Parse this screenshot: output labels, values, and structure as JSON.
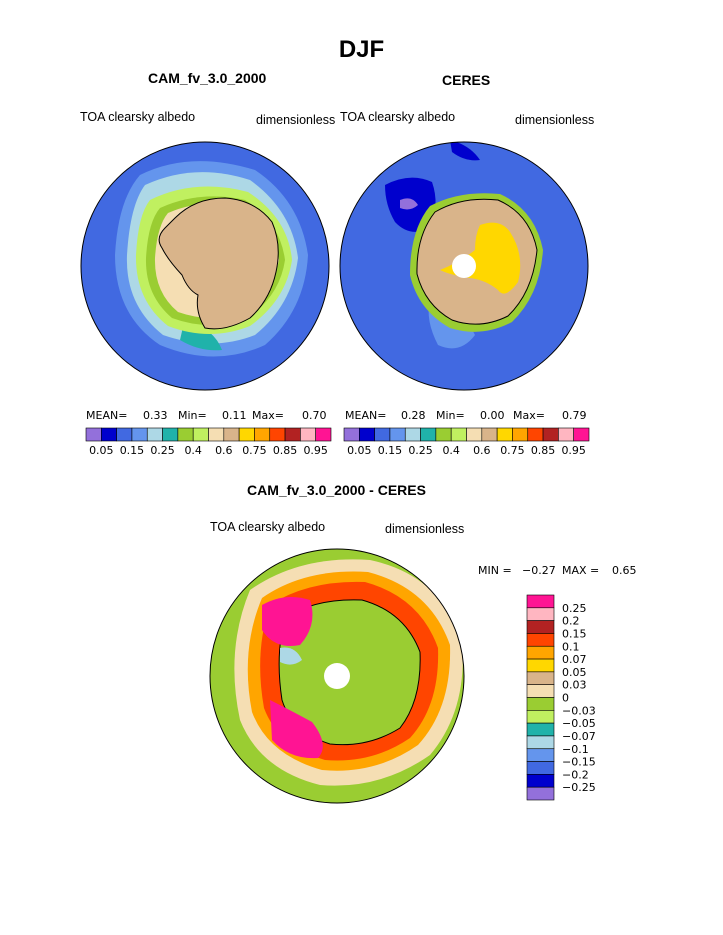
{
  "page": {
    "title": "DJF"
  },
  "colors": {
    "continent": "#d9b48a",
    "ocean_model": "#4169e1",
    "coast": "#000000",
    "palette_abs": [
      "#9370db",
      "#0000cd",
      "#4169e1",
      "#6495ed",
      "#add8e6",
      "#20b2aa",
      "#9acd32",
      "#c0f060",
      "#f5deb3",
      "#d9b48a",
      "#ffd700",
      "#ffa500",
      "#ff4500",
      "#b22222",
      "#ffb6c1",
      "#ff1493"
    ],
    "palette_diff": [
      "#ff1493",
      "#ffb6c1",
      "#b22222",
      "#ff4500",
      "#ffa500",
      "#ffd700",
      "#d9b48a",
      "#f5deb3",
      "#9acd32",
      "#c0f060",
      "#20b2aa",
      "#add8e6",
      "#6495ed",
      "#4169e1",
      "#0000cd",
      "#9370db"
    ]
  },
  "panels": [
    {
      "title": "CAM_fv_3.0_2000",
      "left_label": "TOA clearsky albedo",
      "right_label": "dimensionless",
      "mean_label": "MEAN=",
      "mean": "0.33",
      "min_label": "Min=",
      "min": "0.11",
      "max_label": "Max=",
      "max": "0.70"
    },
    {
      "title": "CERES",
      "left_label": "TOA clearsky albedo",
      "right_label": "dimensionless",
      "mean_label": "MEAN=",
      "mean": "0.28",
      "min_label": "Min=",
      "min": "0.00",
      "max_label": "Max=",
      "max": "0.79"
    },
    {
      "title": "CAM_fv_3.0_2000 - CERES",
      "left_label": "TOA clearsky albedo",
      "right_label": "dimensionless",
      "min_label": "MIN =",
      "min": "−0.27",
      "max_label": "MAX =",
      "max": "0.65"
    }
  ],
  "chart_data": [
    {
      "type": "heatmap",
      "title": "CAM_fv_3.0_2000",
      "projection": "south-polar stereographic",
      "colorbar": {
        "orientation": "horizontal",
        "levels": [
          0.05,
          0.1,
          0.15,
          0.2,
          0.25,
          0.3,
          0.4,
          0.5,
          0.6,
          0.7,
          0.75,
          0.8,
          0.85,
          0.9,
          0.95
        ],
        "tick_labels": [
          "0.05",
          "0.15",
          "0.25",
          "0.4",
          "0.6",
          "0.75",
          "0.85",
          "0.95"
        ]
      },
      "stats": {
        "mean": 0.33,
        "min": 0.11,
        "max": 0.7
      }
    },
    {
      "type": "heatmap",
      "title": "CERES",
      "projection": "south-polar stereographic",
      "colorbar": {
        "orientation": "horizontal",
        "levels": [
          0.05,
          0.1,
          0.15,
          0.2,
          0.25,
          0.3,
          0.4,
          0.5,
          0.6,
          0.7,
          0.75,
          0.8,
          0.85,
          0.9,
          0.95
        ],
        "tick_labels": [
          "0.05",
          "0.15",
          "0.25",
          "0.4",
          "0.6",
          "0.75",
          "0.85",
          "0.95"
        ]
      },
      "stats": {
        "mean": 0.28,
        "min": 0.0,
        "max": 0.79
      }
    },
    {
      "type": "heatmap",
      "title": "CAM_fv_3.0_2000 - CERES",
      "projection": "south-polar stereographic",
      "colorbar": {
        "orientation": "vertical",
        "tick_labels": [
          "0.25",
          "0.2",
          "0.15",
          "0.1",
          "0.07",
          "0.05",
          "0.03",
          "0",
          "−0.03",
          "−0.05",
          "−0.07",
          "−0.1",
          "−0.15",
          "−0.2",
          "−0.25"
        ]
      },
      "stats": {
        "min": -0.27,
        "max": 0.65
      }
    }
  ]
}
